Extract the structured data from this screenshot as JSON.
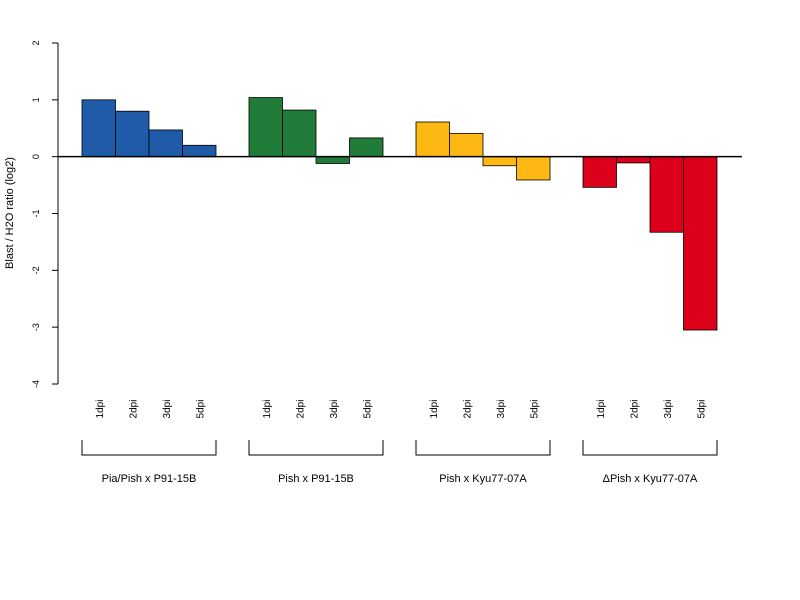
{
  "chart_data": {
    "type": "bar",
    "ylabel": "Blast / H2O ratio (log2)",
    "ylim": [
      -4,
      2
    ],
    "yticks": [
      -4,
      -3,
      -2,
      -1,
      0,
      1,
      2
    ],
    "ytick_labels": [
      "-4",
      "-3",
      "-2",
      "-1",
      "0",
      "1",
      "2"
    ],
    "categories": [
      "1dpi",
      "2dpi",
      "3dpi",
      "5dpi"
    ],
    "series": [
      {
        "name": "Pia/Pish x P91-15B",
        "color": "#1f5ba8",
        "values": [
          1.0,
          0.8,
          0.47,
          0.2
        ]
      },
      {
        "name": "Pish x P91-15B",
        "color": "#217c3a",
        "values": [
          1.04,
          0.82,
          -0.12,
          0.33
        ]
      },
      {
        "name": "Pish x Kyu77-07A",
        "color": "#fdb813",
        "values": [
          0.61,
          0.41,
          -0.16,
          -0.41
        ]
      },
      {
        "name": "ΔPish x Kyu77-07A",
        "color": "#dc001b",
        "values": [
          -0.54,
          -0.11,
          -1.33,
          -3.05
        ]
      }
    ],
    "zero_line": true,
    "grid": false,
    "legend": "none"
  }
}
